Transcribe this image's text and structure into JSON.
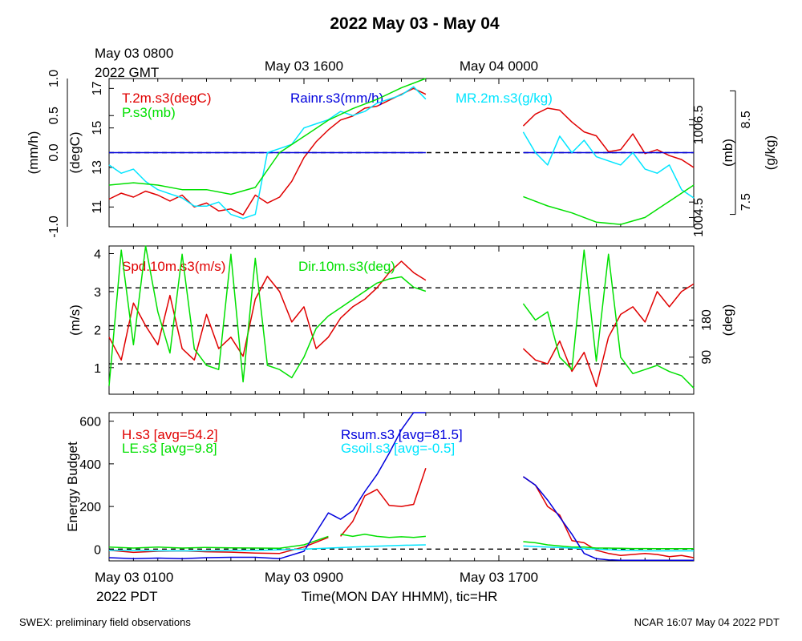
{
  "title": "2022 May 03 - May 04",
  "footer": {
    "left": "SWEX: preliminary field observations",
    "right": "NCAR 16:07 May 04 2022 PDT"
  },
  "top_axis": {
    "ticks": [
      {
        "label": "May 03 0800",
        "hour": 0
      },
      {
        "label": "May 03 1600",
        "hour": 8
      },
      {
        "label": "May 04 0000",
        "hour": 16
      }
    ],
    "zone_label": "2022 GMT"
  },
  "bottom_axis": {
    "ticks": [
      {
        "label": "May 03 0100",
        "hour": 0
      },
      {
        "label": "May 03 0900",
        "hour": 8
      },
      {
        "label": "May 03 1700",
        "hour": 16
      }
    ],
    "zone_label": "2022 PDT",
    "xlabel": "Time(MON DAY HHMM), tic=HR"
  },
  "colors": {
    "red": "#e00000",
    "green": "#00e000",
    "blue": "#0000dd",
    "cyan": "#00e5ff",
    "black": "#000000"
  },
  "chart_data": [
    {
      "type": "line",
      "panel": "top",
      "x_unit": "hours since May 03 0100 PDT",
      "xlim": [
        0,
        24
      ],
      "axes": {
        "left_outer": {
          "label": "(mm/h)",
          "ylim": [
            -1.0,
            1.0
          ],
          "ticks": [
            "-1.0",
            "0.0",
            "0.5",
            "1.0"
          ]
        },
        "left_inner": {
          "label": "(degC)",
          "ylim": [
            10,
            17.5
          ],
          "ticks": [
            "11",
            "13",
            "15",
            "17"
          ]
        },
        "right_inner": {
          "label": "(mb)",
          "ylim": [
            1004.3,
            1007.5
          ],
          "ticks": [
            "1004.5",
            "1006.5"
          ]
        },
        "right_outer": {
          "label": "(g/kg)",
          "ylim": [
            7.2,
            9.0
          ],
          "ticks": [
            "7.5",
            "8.5"
          ]
        }
      },
      "reference_lines": [
        {
          "axis": "left_outer",
          "y": 0.0,
          "style": "dashed"
        }
      ],
      "series": [
        {
          "name": "T.2m.s3(degC)",
          "color": "red",
          "axis": "left_inner",
          "segments": [
            {
              "x": [
                0,
                0.5,
                1,
                1.5,
                2,
                2.5,
                3,
                3.5,
                4,
                4.5,
                5,
                5.5,
                6,
                6.5,
                7,
                7.5,
                8,
                8.5,
                9,
                9.5,
                10,
                10.5,
                11,
                11.5,
                12,
                12.5,
                13
              ],
              "y": [
                11.4,
                11.7,
                11.5,
                11.8,
                11.6,
                11.3,
                11.6,
                11.0,
                11.2,
                10.8,
                10.9,
                10.6,
                11.6,
                11.2,
                11.5,
                12.3,
                13.5,
                14.3,
                14.9,
                15.4,
                15.6,
                16.0,
                16.1,
                16.4,
                16.7,
                17.0,
                16.7
              ]
            },
            {
              "x": [
                17,
                17.5,
                18,
                18.5,
                19,
                19.5,
                20,
                20.5,
                21,
                21.5,
                22,
                22.5,
                23,
                23.5,
                24
              ],
              "y": [
                15.1,
                15.7,
                16.0,
                15.9,
                15.3,
                14.8,
                14.6,
                13.8,
                13.9,
                14.7,
                13.7,
                13.9,
                13.6,
                13.4,
                13.0
              ]
            }
          ]
        },
        {
          "name": "Rainr.s3(mm/h)",
          "color": "blue",
          "axis": "left_outer",
          "segments": [
            {
              "x": [
                0,
                13
              ],
              "y": [
                0.0,
                0.0
              ]
            },
            {
              "x": [
                17,
                24
              ],
              "y": [
                0.0,
                0.0
              ]
            }
          ]
        },
        {
          "name": "MR.2m.s3(g/kg)",
          "color": "cyan",
          "axis": "right_outer",
          "segments": [
            {
              "x": [
                0,
                0.5,
                1,
                1.5,
                2,
                2.5,
                3,
                3.5,
                4,
                4.5,
                5,
                5.5,
                6,
                6.5,
                7,
                7.5,
                8,
                8.5,
                9,
                9.5,
                10,
                10.5,
                11,
                11.5,
                12,
                12.5,
                13
              ],
              "y": [
                7.95,
                7.85,
                7.9,
                7.75,
                7.65,
                7.6,
                7.55,
                7.45,
                7.45,
                7.5,
                7.35,
                7.3,
                7.35,
                8.1,
                8.15,
                8.2,
                8.4,
                8.45,
                8.5,
                8.6,
                8.55,
                8.6,
                8.7,
                8.75,
                8.8,
                8.9,
                8.75
              ]
            },
            {
              "x": [
                17,
                17.5,
                18,
                18.5,
                19,
                19.5,
                20,
                20.5,
                21,
                21.5,
                22,
                22.5,
                23,
                23.5,
                24
              ],
              "y": [
                8.35,
                8.1,
                7.95,
                8.3,
                8.1,
                8.25,
                8.05,
                8.0,
                7.95,
                8.1,
                7.9,
                7.85,
                7.95,
                7.65,
                7.55
              ]
            }
          ]
        },
        {
          "name": "P.s3(mb)",
          "color": "green",
          "axis": "right_inner",
          "segments": [
            {
              "x": [
                0,
                1,
                2,
                3,
                4,
                5,
                6,
                7,
                8,
                9,
                10,
                11,
                12,
                13
              ],
              "y": [
                1005.2,
                1005.25,
                1005.2,
                1005.1,
                1005.1,
                1005.0,
                1005.15,
                1005.9,
                1006.25,
                1006.6,
                1006.85,
                1007.05,
                1007.3,
                1007.5
              ]
            },
            {
              "x": [
                17,
                18,
                19,
                20,
                21,
                22,
                23,
                24
              ],
              "y": [
                1004.95,
                1004.75,
                1004.6,
                1004.4,
                1004.35,
                1004.5,
                1004.85,
                1005.2
              ]
            }
          ]
        }
      ]
    },
    {
      "type": "line",
      "panel": "middle",
      "x_unit": "hours since May 03 0100 PDT",
      "xlim": [
        0,
        24
      ],
      "axes": {
        "left": {
          "label": "(m/s)",
          "ylim": [
            0.3,
            4.2
          ],
          "ticks": [
            "1",
            "2",
            "3",
            "4"
          ]
        },
        "right": {
          "label": "(deg)",
          "ylim": [
            0,
            360
          ],
          "ticks": [
            "90",
            "180"
          ]
        }
      },
      "reference_lines": [
        {
          "axis": "left",
          "y": 1.1,
          "style": "dashed"
        },
        {
          "axis": "left",
          "y": 2.1,
          "style": "dashed"
        },
        {
          "axis": "left",
          "y": 3.1,
          "style": "dashed"
        }
      ],
      "series": [
        {
          "name": "Spd.10m.s3(m/s)",
          "color": "red",
          "axis": "left",
          "segments": [
            {
              "x": [
                0,
                0.5,
                1,
                1.5,
                2,
                2.5,
                3,
                3.5,
                4,
                4.5,
                5,
                5.5,
                6,
                6.5,
                7,
                7.5,
                8,
                8.5,
                9,
                9.5,
                10,
                10.5,
                11,
                11.5,
                12,
                12.5,
                13
              ],
              "y": [
                1.8,
                1.2,
                2.7,
                2.1,
                1.6,
                2.9,
                1.5,
                1.2,
                2.4,
                1.5,
                1.8,
                1.3,
                2.8,
                3.4,
                3.0,
                2.2,
                2.6,
                1.5,
                1.8,
                2.3,
                2.6,
                2.8,
                3.1,
                3.5,
                3.8,
                3.5,
                3.3
              ]
            },
            {
              "x": [
                17,
                17.5,
                18,
                18.5,
                19,
                19.5,
                20,
                20.5,
                21,
                21.5,
                22,
                22.5,
                23,
                23.5,
                24
              ],
              "y": [
                1.5,
                1.2,
                1.1,
                1.7,
                0.9,
                1.4,
                0.5,
                1.8,
                2.4,
                2.6,
                2.2,
                3.0,
                2.6,
                3.0,
                3.2
              ]
            }
          ]
        },
        {
          "name": "Dir.10m.s3(deg)",
          "color": "green",
          "axis": "right",
          "segments": [
            {
              "x": [
                0,
                0.5,
                1,
                1.5,
                2,
                2.5,
                3,
                3.5,
                4,
                4.5,
                5,
                5.5,
                6,
                6.5,
                7,
                7.5,
                8,
                8.5,
                9,
                9.5,
                10,
                10.5,
                11,
                11.5,
                12,
                12.5,
                13
              ],
              "y": [
                20,
                350,
                120,
                360,
                200,
                100,
                340,
                110,
                70,
                60,
                340,
                30,
                330,
                70,
                60,
                40,
                90,
                160,
                190,
                210,
                230,
                250,
                270,
                280,
                285,
                260,
                250
              ]
            },
            {
              "x": [
                17,
                17.5,
                18,
                18.5,
                19,
                19.5,
                20,
                20.5,
                21,
                21.5,
                22,
                22.5,
                23,
                23.5,
                24
              ],
              "y": [
                220,
                180,
                200,
                90,
                60,
                350,
                80,
                340,
                90,
                50,
                60,
                70,
                55,
                45,
                15
              ]
            }
          ]
        }
      ]
    },
    {
      "type": "line",
      "panel": "bottom",
      "x_unit": "hours since May 03 0100 PDT",
      "xlim": [
        0,
        24
      ],
      "ylabel": "Energy Budget",
      "ylim": [
        -55,
        640
      ],
      "yticks": [
        "0",
        "200",
        "400",
        "600"
      ],
      "reference_lines": [
        {
          "y": 0,
          "style": "dashed"
        }
      ],
      "series": [
        {
          "name": "H.s3 [avg=54.2]",
          "color": "red",
          "segments": [
            {
              "x": [
                0,
                1,
                2,
                3,
                4,
                5,
                6,
                7,
                8,
                9
              ],
              "y": [
                -5,
                -15,
                -10,
                -8,
                -12,
                -14,
                -18,
                -20,
                10,
                55
              ]
            },
            {
              "x": [
                9.5,
                10,
                10.5,
                11,
                11.5,
                12,
                12.5,
                13
              ],
              "y": [
                60,
                130,
                250,
                280,
                205,
                200,
                210,
                380
              ]
            },
            {
              "x": [
                17,
                17.5,
                18,
                18.5,
                19,
                19.5,
                20,
                20.5,
                21,
                21.5,
                22,
                22.5,
                23,
                23.5,
                24
              ],
              "y": [
                340,
                300,
                200,
                160,
                40,
                30,
                -5,
                -20,
                -30,
                -25,
                -20,
                -25,
                -35,
                -30,
                -40
              ]
            }
          ]
        },
        {
          "name": "LE.s3 [avg=9.8]",
          "color": "green",
          "segments": [
            {
              "x": [
                0,
                1,
                2,
                3,
                4,
                5,
                6,
                7,
                8,
                9
              ],
              "y": [
                10,
                5,
                10,
                5,
                8,
                6,
                5,
                4,
                20,
                60
              ]
            },
            {
              "x": [
                9.5,
                10,
                10.5,
                11,
                11.5,
                12,
                12.5,
                13
              ],
              "y": [
                70,
                60,
                70,
                60,
                55,
                58,
                55,
                60
              ]
            },
            {
              "x": [
                17,
                17.5,
                18,
                18.5,
                19,
                19.5,
                20,
                20.5,
                21,
                21.5,
                22,
                22.5,
                23,
                23.5,
                24
              ],
              "y": [
                35,
                30,
                20,
                15,
                10,
                10,
                5,
                5,
                4,
                3,
                3,
                2,
                2,
                2,
                2
              ]
            }
          ]
        },
        {
          "name": "Rsum.s3 [avg=81.5]",
          "color": "blue",
          "segments": [
            {
              "x": [
                0,
                1,
                2,
                3,
                4,
                5,
                6,
                7,
                8,
                8.5,
                9,
                9.5,
                10,
                10.5,
                11,
                11.5,
                12,
                12.5,
                13
              ],
              "y": [
                -40,
                -45,
                -42,
                -45,
                -40,
                -38,
                -38,
                -45,
                -10,
                80,
                170,
                140,
                180,
                270,
                350,
                450,
                560,
                640,
                640
              ]
            },
            {
              "x": [
                17,
                17.5,
                18,
                18.5,
                19,
                19.5,
                20,
                20.5,
                21,
                21.5,
                22,
                22.5,
                23,
                23.5,
                24
              ],
              "y": [
                340,
                300,
                230,
                150,
                70,
                -20,
                -45,
                -50,
                -52,
                -52,
                -52,
                -52,
                -52,
                -52,
                -52
              ]
            }
          ]
        },
        {
          "name": "Gsoil.s3 [avg=-0.5]",
          "color": "cyan",
          "segments": [
            {
              "x": [
                0,
                2,
                4,
                6,
                8,
                10,
                12,
                13
              ],
              "y": [
                -5,
                -8,
                -8,
                -6,
                0,
                10,
                18,
                20
              ]
            },
            {
              "x": [
                17,
                18,
                19,
                20,
                21,
                22,
                23,
                24
              ],
              "y": [
                15,
                10,
                5,
                0,
                -5,
                -8,
                -8,
                -8
              ]
            }
          ]
        }
      ]
    }
  ]
}
